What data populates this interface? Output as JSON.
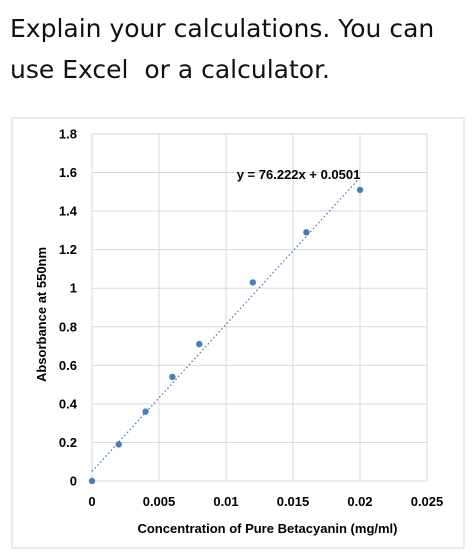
{
  "question": {
    "line1": "Explain your calculations. You can",
    "line2": "use Excel  or a calculator."
  },
  "chart_data": {
    "type": "scatter",
    "title": "",
    "xlabel": "Concentration of Pure Betacyanin (mg/ml)",
    "ylabel": "Absorbance at 550nm",
    "xlim": [
      0,
      0.025
    ],
    "ylim": [
      0,
      1.8
    ],
    "x_ticks": [
      "0",
      "0.005",
      "0.01",
      "0.015",
      "0.02",
      "0.025"
    ],
    "y_ticks": [
      "0",
      "0.2",
      "0.4",
      "0.6",
      "0.8",
      "1",
      "1.2",
      "1.4",
      "1.6",
      "1.8"
    ],
    "grid": true,
    "points": [
      {
        "x": 0,
        "y": 0.0
      },
      {
        "x": 0.002,
        "y": 0.19
      },
      {
        "x": 0.004,
        "y": 0.36
      },
      {
        "x": 0.006,
        "y": 0.54
      },
      {
        "x": 0.008,
        "y": 0.71
      },
      {
        "x": 0.012,
        "y": 1.03
      },
      {
        "x": 0.016,
        "y": 1.29
      },
      {
        "x": 0.02,
        "y": 1.51
      }
    ],
    "trendline": {
      "slope": 76.222,
      "intercept": 0.0501,
      "x_range": [
        0,
        0.02
      ],
      "equation": "y = 76.222x + 0.0501"
    },
    "colors": {
      "marker": "#4a7ebb",
      "trendline": "#4a7ebb",
      "grid": "#d9d9d9"
    }
  }
}
